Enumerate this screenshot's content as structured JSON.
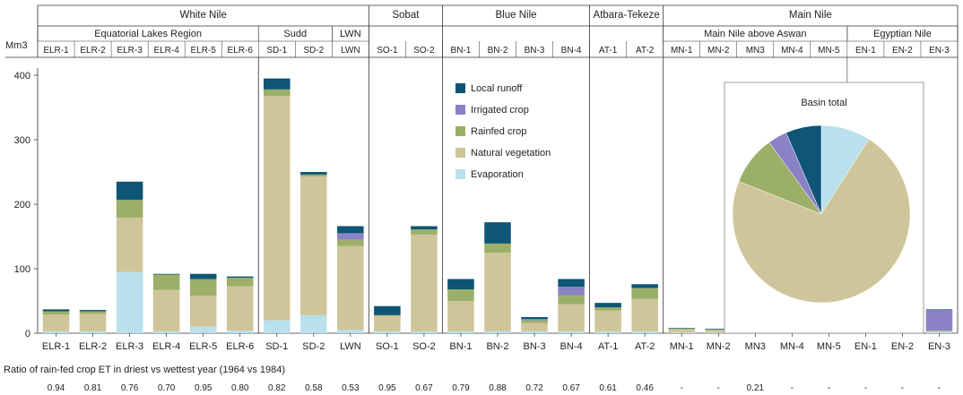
{
  "chart_data": {
    "type": "bar",
    "stacked": true,
    "ylabel": "Mm3",
    "ylim": [
      0,
      400
    ],
    "yticks": [
      0,
      100,
      200,
      300,
      400
    ],
    "grid": false,
    "legend_placement": "center-right",
    "categories": [
      "ELR-1",
      "ELR-2",
      "ELR-3",
      "ELR-4",
      "ELR-5",
      "ELR-6",
      "SD-1",
      "SD-2",
      "LWN",
      "SO-1",
      "SO-2",
      "BN-1",
      "BN-2",
      "BN-3",
      "BN-4",
      "AT-1",
      "AT-2",
      "MN-1",
      "MN-2",
      "MN3",
      "MN-4",
      "MN-5",
      "EN-1",
      "EN-2",
      "EN-3"
    ],
    "series": [
      {
        "name": "Evaporation",
        "color": "#b9e0ec",
        "values": [
          3,
          3,
          95,
          3,
          10,
          4,
          20,
          28,
          5,
          3,
          3,
          3,
          3,
          3,
          3,
          3,
          3,
          1,
          1,
          1,
          1,
          8,
          3,
          3,
          2
        ]
      },
      {
        "name": "Natural vegetation",
        "color": "#cfc59a",
        "values": [
          26,
          27,
          84,
          64,
          48,
          69,
          348,
          215,
          130,
          24,
          150,
          47,
          122,
          13,
          42,
          32,
          50,
          5,
          4,
          28,
          4,
          1,
          1,
          1,
          1
        ]
      },
      {
        "name": "Rainfed crop",
        "color": "#9caf68",
        "values": [
          5,
          4,
          28,
          24,
          26,
          13,
          10,
          3,
          10,
          1,
          8,
          18,
          14,
          4,
          14,
          5,
          17,
          1,
          1,
          3,
          1,
          1,
          1,
          1,
          1
        ]
      },
      {
        "name": "Irrigated crop",
        "color": "#8b82c6",
        "values": [
          0,
          0,
          0,
          0,
          0,
          0,
          0,
          0,
          10,
          0,
          0,
          0,
          0,
          2,
          13,
          0,
          0,
          0,
          0,
          0,
          0,
          0,
          0,
          15,
          32
        ]
      },
      {
        "name": "Local runoff",
        "color": "#0e5576",
        "values": [
          3,
          2,
          28,
          1,
          8,
          2,
          17,
          4,
          11,
          14,
          5,
          16,
          33,
          3,
          12,
          7,
          6,
          1,
          1,
          1,
          1,
          1,
          1,
          1,
          1
        ]
      }
    ],
    "ratio_label": "Ratio of rain-fed crop ET in driest vs wettest year (1964 vs 1984)",
    "ratios": [
      "0.94",
      "0.81",
      "0.76",
      "0.70",
      "0.95",
      "0.80",
      "0.82",
      "0.58",
      "0.53",
      "0.95",
      "0.67",
      "0.79",
      "0.88",
      "0.72",
      "0.67",
      "0.61",
      "0.46",
      "-",
      "-",
      "0.21",
      "-",
      "-",
      "-",
      "-",
      "-"
    ],
    "header": {
      "top": [
        {
          "label": "White Nile",
          "span": 9
        },
        {
          "label": "Sobat",
          "span": 2
        },
        {
          "label": "Blue Nile",
          "span": 4
        },
        {
          "label": "Atbara-Tekeze",
          "span": 2
        },
        {
          "label": "Main Nile",
          "span": 8
        }
      ],
      "middle": [
        {
          "label": "Equatorial Lakes Region",
          "span": 6
        },
        {
          "label": "Sudd",
          "span": 2
        },
        {
          "label": "LWN",
          "span": 1
        },
        {
          "label": "",
          "span": 2
        },
        {
          "label": "",
          "span": 4
        },
        {
          "label": "",
          "span": 2
        },
        {
          "label": "Main Nile above Aswan",
          "span": 5
        },
        {
          "label": "Egyptian Nile",
          "span": 3
        }
      ],
      "codes": [
        "ELR-1",
        "ELR-2",
        "ELR-3",
        "ELR-4",
        "ELR-5",
        "ELR-6",
        "SD-1",
        "SD-2",
        "LWN",
        "SO-1",
        "SO-2",
        "BN-1",
        "BN-2",
        "BN-3",
        "BN-4",
        "AT-1",
        "AT-2",
        "MN-1",
        "MN-2",
        "MN3",
        "MN-4",
        "MN-5",
        "EN-1",
        "EN-2",
        "EN-3"
      ]
    },
    "pie": {
      "title": "Basin total",
      "slices": [
        {
          "name": "Evaporation",
          "value": 9,
          "color": "#b9e0ec"
        },
        {
          "name": "Natural vegetation",
          "value": 72,
          "color": "#cfc59a"
        },
        {
          "name": "Rainfed crop",
          "value": 9,
          "color": "#9caf68"
        },
        {
          "name": "Irrigated crop",
          "value": 3.5,
          "color": "#8b82c6"
        },
        {
          "name": "Local runoff",
          "value": 6.5,
          "color": "#0e5576"
        }
      ]
    },
    "legend_order": [
      "Local runoff",
      "Irrigated crop",
      "Rainfed crop",
      "Natural vegetation",
      "Evaporation"
    ]
  }
}
